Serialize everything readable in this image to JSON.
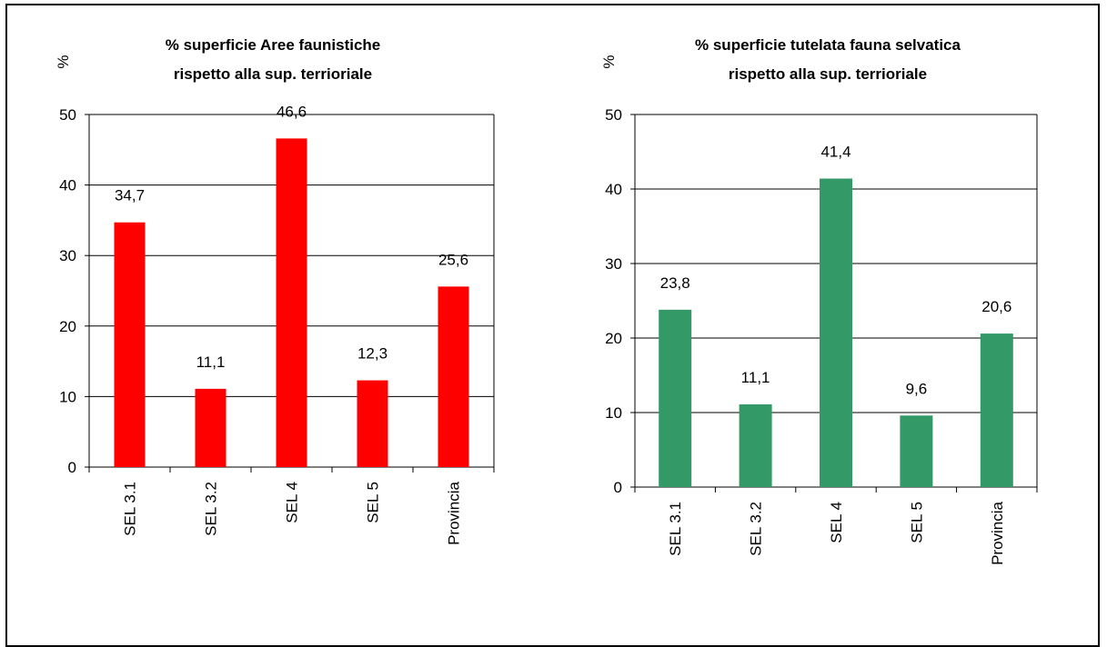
{
  "chart_data": [
    {
      "type": "bar",
      "title": [
        "% superficie Aree faunistiche",
        "rispetto alla sup. terrioriale"
      ],
      "ylabel": "%",
      "categories": [
        "SEL 3.1",
        "SEL 3.2",
        "SEL 4",
        "SEL 5",
        "Provincia"
      ],
      "values": [
        34.7,
        11.1,
        46.6,
        12.3,
        25.6
      ],
      "data_labels": [
        "34,7",
        "11,1",
        "46,6",
        "12,3",
        "25,6"
      ],
      "ylim": [
        0,
        50
      ],
      "yticks": [
        0,
        10,
        20,
        30,
        40,
        50
      ],
      "grid": true,
      "color": "#ff0000"
    },
    {
      "type": "bar",
      "title": [
        "% superficie tutelata fauna selvatica",
        "rispetto alla sup. terrioriale"
      ],
      "ylabel": "%",
      "categories": [
        "SEL 3.1",
        "SEL 3.2",
        "SEL 4",
        "SEL 5",
        "Provincia"
      ],
      "values": [
        23.8,
        11.1,
        41.4,
        9.6,
        20.6
      ],
      "data_labels": [
        "23,8",
        "11,1",
        "41,4",
        "9,6",
        "20,6"
      ],
      "ylim": [
        0,
        50
      ],
      "yticks": [
        0,
        10,
        20,
        30,
        40,
        50
      ],
      "grid": true,
      "color": "#339966"
    }
  ]
}
